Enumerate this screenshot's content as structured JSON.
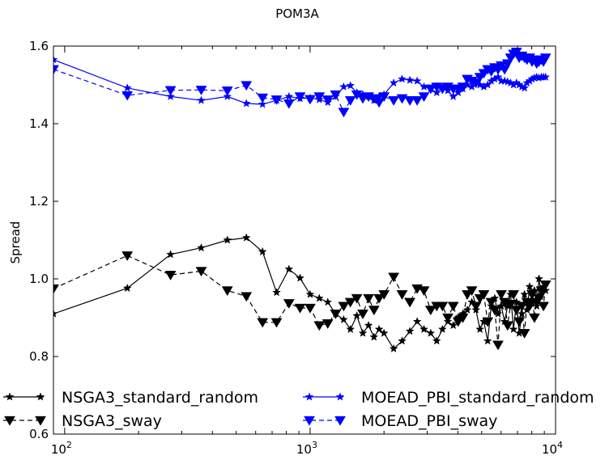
{
  "chart_data": {
    "type": "line",
    "title": "POM3A",
    "xlabel": "",
    "ylabel": "Spread",
    "x_scale": "log",
    "xlim": [
      90,
      10000
    ],
    "ylim": [
      0.6,
      1.6
    ],
    "x_tick_labels": [
      {
        "value": 100,
        "base": "10",
        "exp": "2"
      },
      {
        "value": 1000,
        "base": "10",
        "exp": "3"
      },
      {
        "value": 10000,
        "base": "10",
        "exp": "4"
      }
    ],
    "y_ticks": [
      0.6,
      0.8,
      1.0,
      1.2,
      1.4,
      1.6
    ],
    "y_tick_labels": [
      "0.6",
      "0.8",
      "1.0",
      "1.2",
      "1.4",
      "1.6"
    ],
    "grid": false,
    "legend_position": "bottom",
    "series": [
      {
        "name": "NSGA3_standard_random",
        "color": "#000000",
        "dash": "solid",
        "marker": "star",
        "x": [
          90,
          180,
          270,
          360,
          460,
          550,
          640,
          730,
          820,
          910,
          1000,
          1090,
          1180,
          1270,
          1370,
          1460,
          1550,
          1640,
          1730,
          1820,
          1910,
          2000,
          2190,
          2370,
          2550,
          2730,
          2910,
          3100,
          3280,
          3460,
          3640,
          3830,
          4010,
          4190,
          4370,
          4560,
          4740,
          4920,
          5100,
          5290,
          5470,
          5650,
          5830,
          6010,
          6200,
          6380,
          6560,
          6740,
          6930,
          7110,
          7290,
          7470,
          7650,
          7840,
          8020,
          8200,
          8380,
          8560,
          8750,
          8930,
          9110
        ],
        "y": [
          0.91,
          0.976,
          1.063,
          1.08,
          1.1,
          1.106,
          1.07,
          0.965,
          1.025,
          1.002,
          0.96,
          0.95,
          0.94,
          0.91,
          0.895,
          0.87,
          0.905,
          0.86,
          0.88,
          0.85,
          0.87,
          0.86,
          0.82,
          0.84,
          0.865,
          0.89,
          0.87,
          0.86,
          0.84,
          0.87,
          0.89,
          0.88,
          0.9,
          0.91,
          0.92,
          0.94,
          0.92,
          0.87,
          0.89,
          0.84,
          0.93,
          0.95,
          0.91,
          0.93,
          0.89,
          0.93,
          0.96,
          0.87,
          0.94,
          0.86,
          0.91,
          0.96,
          0.92,
          0.98,
          0.94,
          0.97,
          0.93,
          1.0,
          0.96,
          0.98,
          0.97
        ]
      },
      {
        "name": "NSGA3_sway",
        "color": "#000000",
        "dash": "dashed",
        "marker": "triangle-down",
        "x": [
          90,
          180,
          270,
          360,
          460,
          550,
          640,
          730,
          820,
          910,
          1000,
          1090,
          1180,
          1270,
          1370,
          1460,
          1550,
          1640,
          1730,
          1820,
          1910,
          2000,
          2190,
          2370,
          2550,
          2730,
          2910,
          3100,
          3280,
          3460,
          3640,
          3830,
          4010,
          4190,
          4370,
          4560,
          4740,
          4920,
          5100,
          5290,
          5470,
          5650,
          5830,
          6010,
          6200,
          6380,
          6560,
          6740,
          6930,
          7110,
          7290,
          7470,
          7650,
          7840,
          8020,
          8200,
          8380,
          8560,
          8750,
          8930,
          9110
        ],
        "y": [
          0.975,
          1.06,
          1.01,
          1.02,
          0.97,
          0.955,
          0.888,
          0.888,
          0.937,
          0.925,
          0.925,
          0.88,
          0.885,
          0.91,
          0.93,
          0.94,
          0.95,
          0.91,
          0.95,
          0.92,
          0.95,
          0.96,
          1.005,
          0.96,
          0.94,
          0.975,
          0.97,
          0.92,
          0.93,
          0.93,
          0.9,
          0.93,
          0.89,
          0.9,
          0.96,
          0.97,
          0.93,
          0.95,
          0.96,
          0.89,
          0.94,
          0.92,
          0.83,
          0.96,
          0.94,
          0.88,
          0.935,
          0.96,
          0.92,
          0.89,
          0.93,
          0.86,
          0.94,
          0.93,
          0.96,
          0.9,
          0.94,
          0.95,
          0.97,
          0.93,
          0.985
        ]
      },
      {
        "name": "MOEAD_PBI_standard_random",
        "color": "#0000ff",
        "dash": "solid",
        "marker": "star",
        "x": [
          90,
          180,
          270,
          360,
          460,
          550,
          640,
          730,
          820,
          910,
          1000,
          1090,
          1180,
          1270,
          1370,
          1460,
          1550,
          1640,
          1730,
          1820,
          1910,
          2000,
          2190,
          2370,
          2550,
          2730,
          2910,
          3100,
          3280,
          3460,
          3640,
          3830,
          4010,
          4190,
          4370,
          4560,
          4740,
          4920,
          5100,
          5290,
          5470,
          5650,
          5830,
          6010,
          6200,
          6380,
          6560,
          6740,
          6930,
          7110,
          7290,
          7470,
          7650,
          7840,
          8020,
          8200,
          8380,
          8560,
          8750,
          8930,
          9110
        ],
        "y": [
          1.565,
          1.492,
          1.47,
          1.46,
          1.47,
          1.452,
          1.45,
          1.46,
          1.47,
          1.465,
          1.466,
          1.462,
          1.455,
          1.47,
          1.495,
          1.498,
          1.48,
          1.475,
          1.47,
          1.46,
          1.47,
          1.475,
          1.505,
          1.515,
          1.512,
          1.51,
          1.495,
          1.49,
          1.48,
          1.495,
          1.485,
          1.47,
          1.48,
          1.49,
          1.5,
          1.495,
          1.51,
          1.5,
          1.495,
          1.5,
          1.51,
          1.515,
          1.52,
          1.51,
          1.51,
          1.508,
          1.505,
          1.5,
          1.505,
          1.5,
          1.495,
          1.492,
          1.505,
          1.51,
          1.515,
          1.518,
          1.52,
          1.518,
          1.52,
          1.52,
          1.52
        ]
      },
      {
        "name": "MOEAD_PBI_sway",
        "color": "#0000ff",
        "dash": "dashed",
        "marker": "triangle-down",
        "x": [
          90,
          180,
          270,
          360,
          460,
          550,
          640,
          730,
          820,
          910,
          1000,
          1090,
          1180,
          1270,
          1370,
          1460,
          1550,
          1640,
          1730,
          1820,
          1910,
          2000,
          2190,
          2370,
          2550,
          2730,
          2910,
          3100,
          3280,
          3460,
          3640,
          3830,
          4010,
          4190,
          4370,
          4560,
          4740,
          4920,
          5100,
          5290,
          5470,
          5650,
          5830,
          6010,
          6200,
          6380,
          6560,
          6740,
          6930,
          7110,
          7290,
          7470,
          7650,
          7840,
          8020,
          8200,
          8380,
          8560,
          8750,
          8930,
          9110
        ],
        "y": [
          1.54,
          1.473,
          1.486,
          1.487,
          1.485,
          1.499,
          1.467,
          1.462,
          1.452,
          1.47,
          1.463,
          1.47,
          1.462,
          1.475,
          1.43,
          1.46,
          1.475,
          1.465,
          1.47,
          1.465,
          1.455,
          1.47,
          1.46,
          1.465,
          1.46,
          1.46,
          1.47,
          1.49,
          1.495,
          1.49,
          1.495,
          1.49,
          1.49,
          1.495,
          1.515,
          1.51,
          1.505,
          1.52,
          1.53,
          1.54,
          1.535,
          1.545,
          1.54,
          1.55,
          1.54,
          1.555,
          1.57,
          1.58,
          1.585,
          1.57,
          1.575,
          1.57,
          1.565,
          1.57,
          1.56,
          1.565,
          1.555,
          1.56,
          1.565,
          1.56,
          1.57
        ]
      }
    ]
  }
}
